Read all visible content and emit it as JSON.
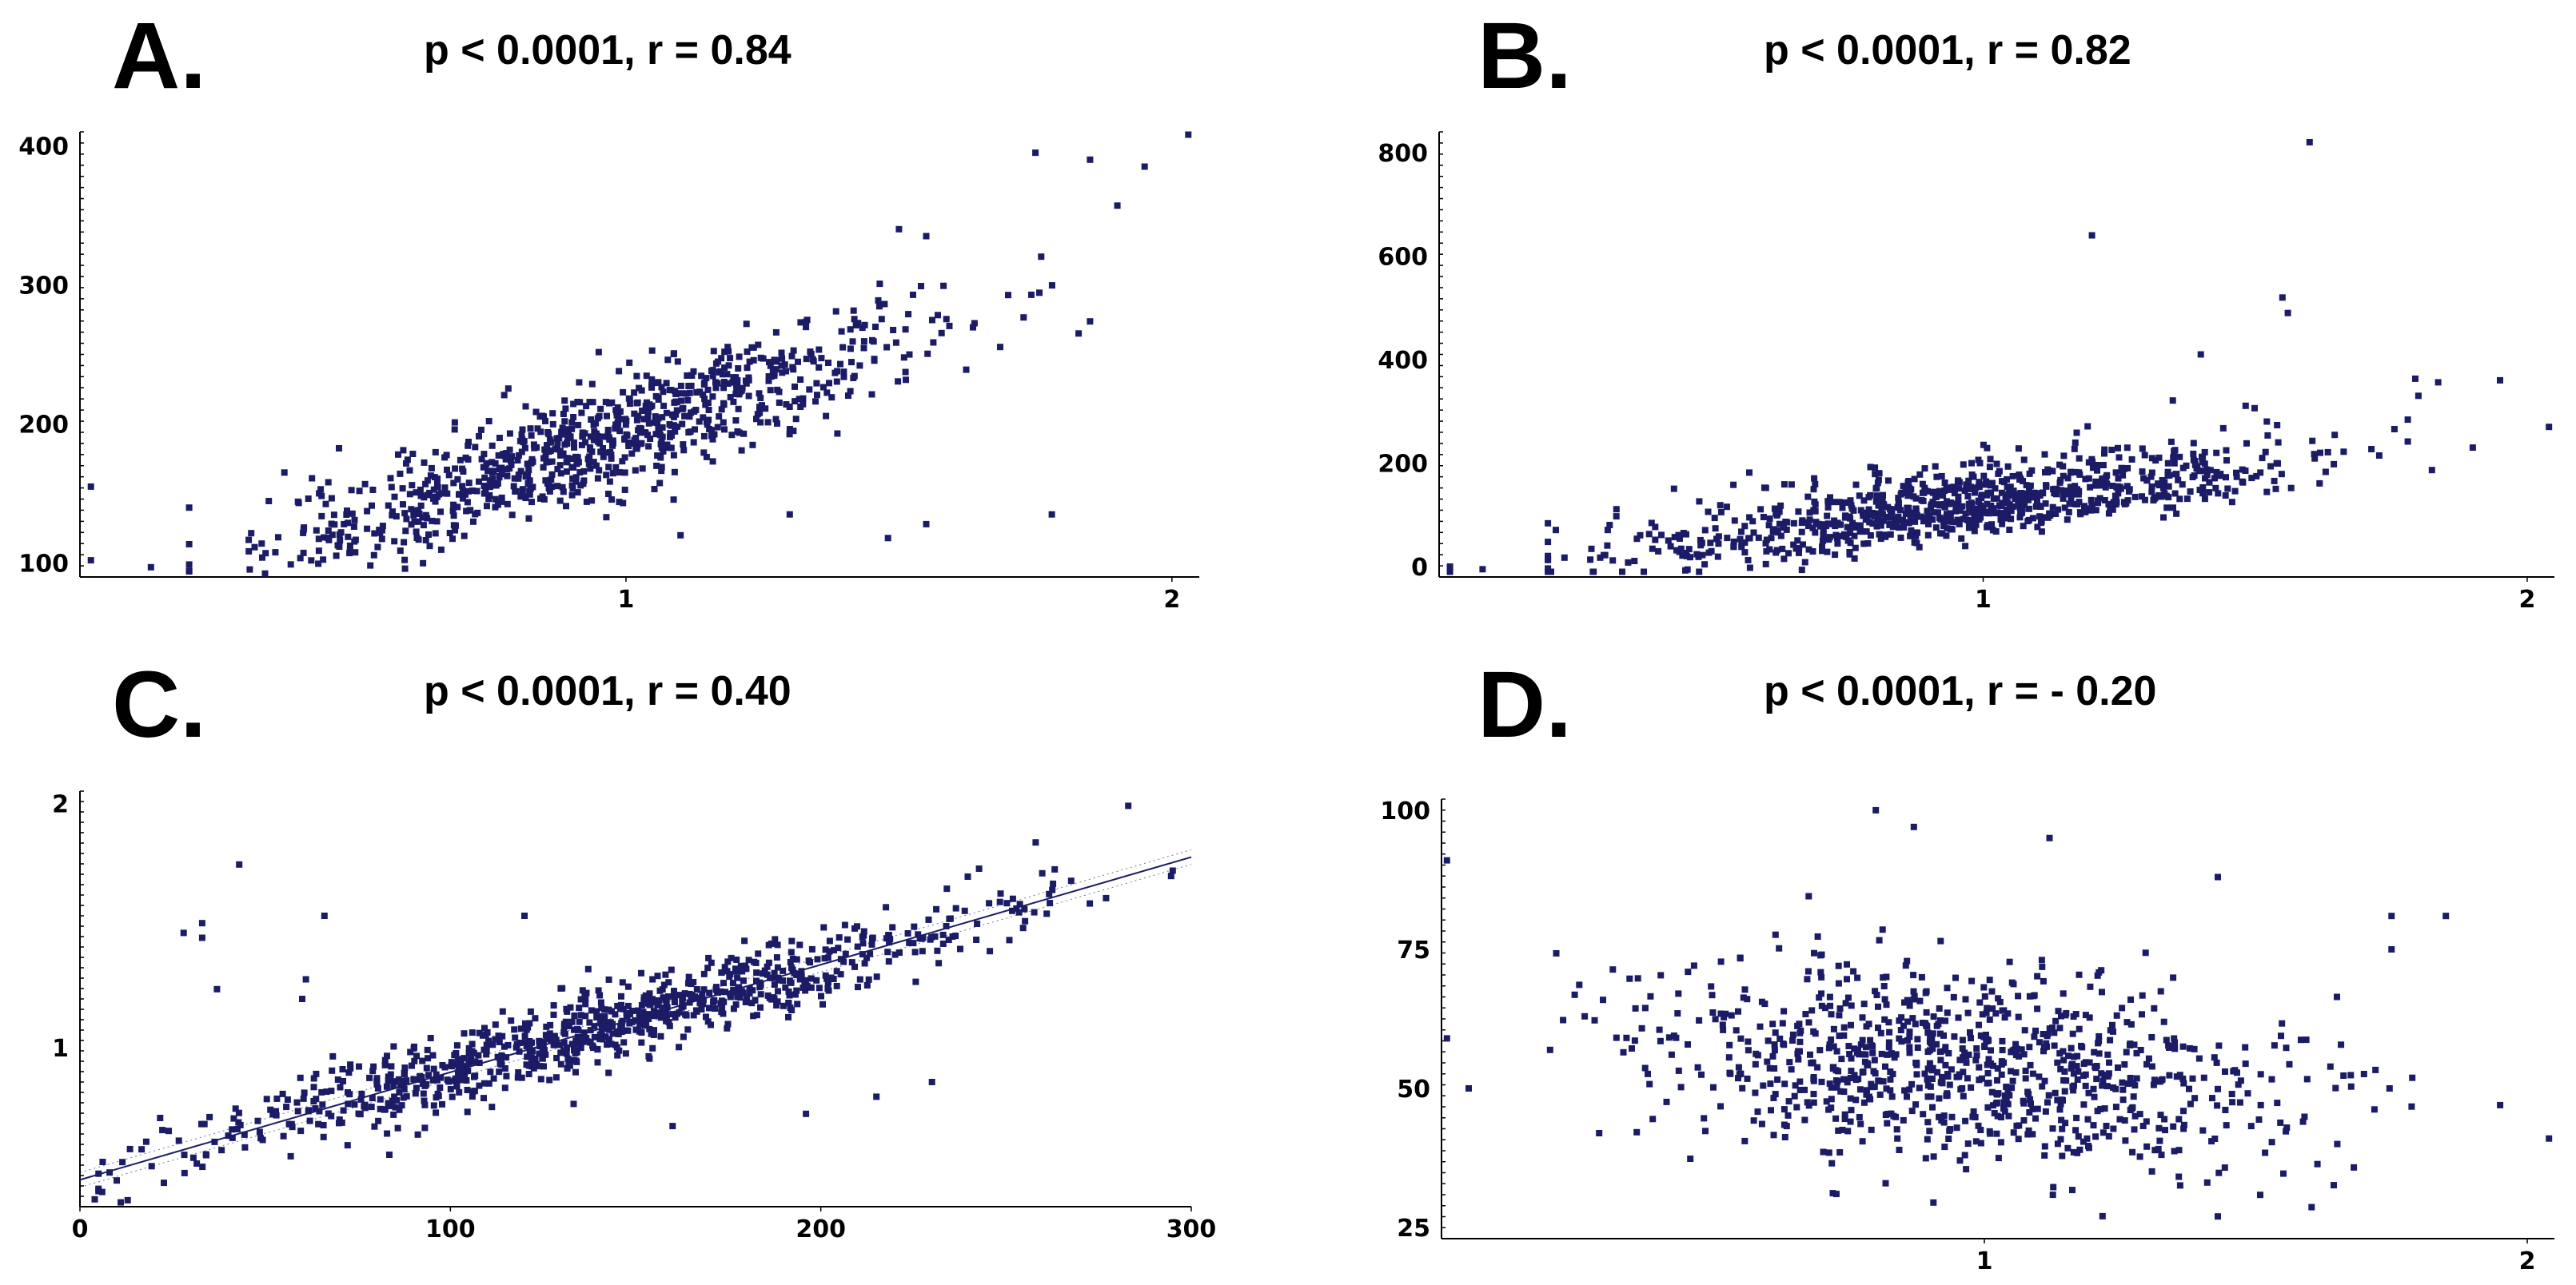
{
  "figure": {
    "colors": {
      "points": "#1b1b66",
      "axis": "#000000",
      "fit_line": "#1b1b66"
    }
  },
  "chart_data": [
    {
      "id": "A",
      "type": "scatter",
      "letter": "A.",
      "stat": "p < 0.0001, r = 0.84",
      "xlim": [
        0.0,
        2.05
      ],
      "ylim": [
        90,
        410
      ],
      "xticks": [
        1,
        2
      ],
      "yticks": [
        100,
        200,
        300,
        400
      ],
      "x_tick_labels": [
        "1",
        "2"
      ],
      "y_tick_labels": [
        "100",
        "200",
        "300",
        "400"
      ],
      "trend": {
        "slope": 135,
        "intercept": 60,
        "spread": 20
      },
      "n_points": 900,
      "extra_points": [
        [
          0.02,
          155
        ],
        [
          0.02,
          102
        ],
        [
          0.2,
          94
        ],
        [
          0.13,
          97
        ],
        [
          1.78,
          135
        ],
        [
          1.55,
          128
        ],
        [
          1.48,
          118
        ],
        [
          1.1,
          120
        ],
        [
          1.3,
          135
        ],
        [
          1.55,
          335
        ],
        [
          1.75,
          395
        ],
        [
          1.85,
          390
        ],
        [
          1.95,
          385
        ],
        [
          2.03,
          408
        ],
        [
          1.9,
          357
        ],
        [
          1.5,
          340
        ]
      ]
    },
    {
      "id": "B",
      "type": "scatter",
      "letter": "B.",
      "stat": "p < 0.0001, r = 0.82",
      "xlim": [
        0.0,
        2.05
      ],
      "ylim": [
        -20,
        840
      ],
      "xticks": [
        1,
        2
      ],
      "yticks": [
        0,
        200,
        400,
        600,
        800
      ],
      "x_tick_labels": [
        "1",
        "2"
      ],
      "y_tick_labels": [
        "0",
        "200",
        "400",
        "600",
        "800"
      ],
      "trend": {
        "slope": 150,
        "intercept": -50,
        "spread": 60
      },
      "n_points": 900,
      "extra_points": [
        [
          0.02,
          0
        ],
        [
          0.02,
          -10
        ],
        [
          0.08,
          -5
        ],
        [
          1.2,
          640
        ],
        [
          1.6,
          820
        ],
        [
          1.55,
          520
        ],
        [
          1.56,
          490
        ],
        [
          1.4,
          410
        ],
        [
          1.95,
          360
        ],
        [
          2.04,
          270
        ],
        [
          1.8,
          330
        ],
        [
          1.9,
          230
        ]
      ]
    },
    {
      "id": "C",
      "type": "scatter",
      "letter": "C.",
      "stat": "p < 0.0001, r = 0.40",
      "xlim": [
        0,
        300
      ],
      "ylim": [
        0.35,
        2.05
      ],
      "xticks": [
        0,
        100,
        200,
        300
      ],
      "yticks": [
        1,
        2
      ],
      "x_tick_labels": [
        "0",
        "100",
        "200",
        "300"
      ],
      "y_tick_labels": [
        "1",
        "2"
      ],
      "trend": {
        "slope": 0.0044,
        "intercept": 0.46,
        "spread": 0.08
      },
      "fit_line": {
        "x": [
          0,
          300
        ],
        "y": [
          0.46,
          1.78
        ]
      },
      "n_points": 900,
      "extra_points": [
        [
          28,
          1.47
        ],
        [
          33,
          1.45
        ],
        [
          33,
          1.51
        ],
        [
          43,
          1.75
        ],
        [
          37,
          1.24
        ],
        [
          66,
          1.54
        ],
        [
          61,
          1.28
        ],
        [
          60,
          1.2
        ],
        [
          230,
          0.86
        ],
        [
          196,
          0.73
        ],
        [
          215,
          0.8
        ],
        [
          120,
          1.54
        ],
        [
          160,
          0.68
        ],
        [
          258,
          1.84
        ],
        [
          283,
          1.99
        ],
        [
          4,
          0.38
        ],
        [
          6,
          0.41
        ],
        [
          8,
          0.49
        ]
      ]
    },
    {
      "id": "D",
      "type": "scatter",
      "letter": "D.",
      "stat": "p < 0.0001, r = - 0.20",
      "xlim": [
        0.0,
        2.05
      ],
      "ylim": [
        23,
        102
      ],
      "xticks": [
        1,
        2
      ],
      "yticks": [
        25,
        50,
        75,
        100
      ],
      "x_tick_labels": [
        "1",
        "2"
      ],
      "y_tick_labels": [
        "25",
        "50",
        "75",
        "100"
      ],
      "trend": {
        "slope": -9,
        "intercept": 62,
        "spread": 9
      },
      "n_points": 900,
      "extra_points": [
        [
          0.01,
          91
        ],
        [
          0.01,
          59
        ],
        [
          0.05,
          50
        ],
        [
          0.8,
          100
        ],
        [
          0.87,
          97
        ],
        [
          1.12,
          95
        ],
        [
          1.43,
          27
        ],
        [
          1.43,
          88
        ],
        [
          1.75,
          81
        ],
        [
          1.75,
          75
        ],
        [
          1.85,
          81
        ],
        [
          1.95,
          47
        ],
        [
          2.04,
          41
        ],
        [
          1.65,
          40
        ]
      ]
    }
  ]
}
